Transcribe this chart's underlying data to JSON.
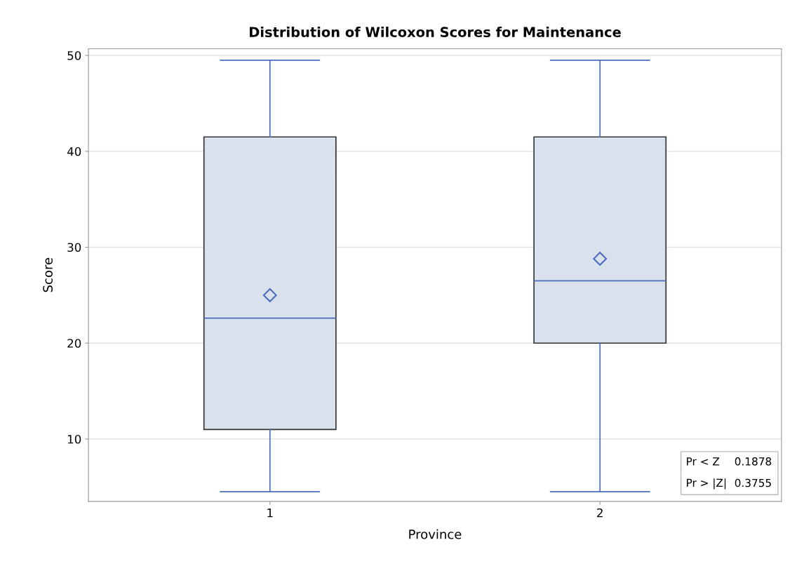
{
  "chart_data": {
    "type": "box",
    "title": "Distribution of Wilcoxon Scores for Maintenance",
    "xlabel": "Province",
    "ylabel": "Score",
    "categories": [
      "1",
      "2"
    ],
    "series": [
      {
        "color": "#d9e1ec",
        "boxes": [
          {
            "low": 4.5,
            "q1": 11,
            "median": 22.6,
            "q3": 41.5,
            "high": 49.5,
            "mean": 25.0
          },
          {
            "low": 4.5,
            "q1": 20,
            "median": 26.5,
            "q3": 41.5,
            "high": 49.5,
            "mean": 28.8
          }
        ]
      }
    ],
    "ylim": [
      3.5,
      50.7
    ],
    "yticks": [
      10,
      20,
      30,
      40,
      50
    ],
    "grid": "y",
    "annotations": [
      "Pr < Z",
      "0.1878",
      "Pr > |Z|",
      "0.3755"
    ]
  }
}
